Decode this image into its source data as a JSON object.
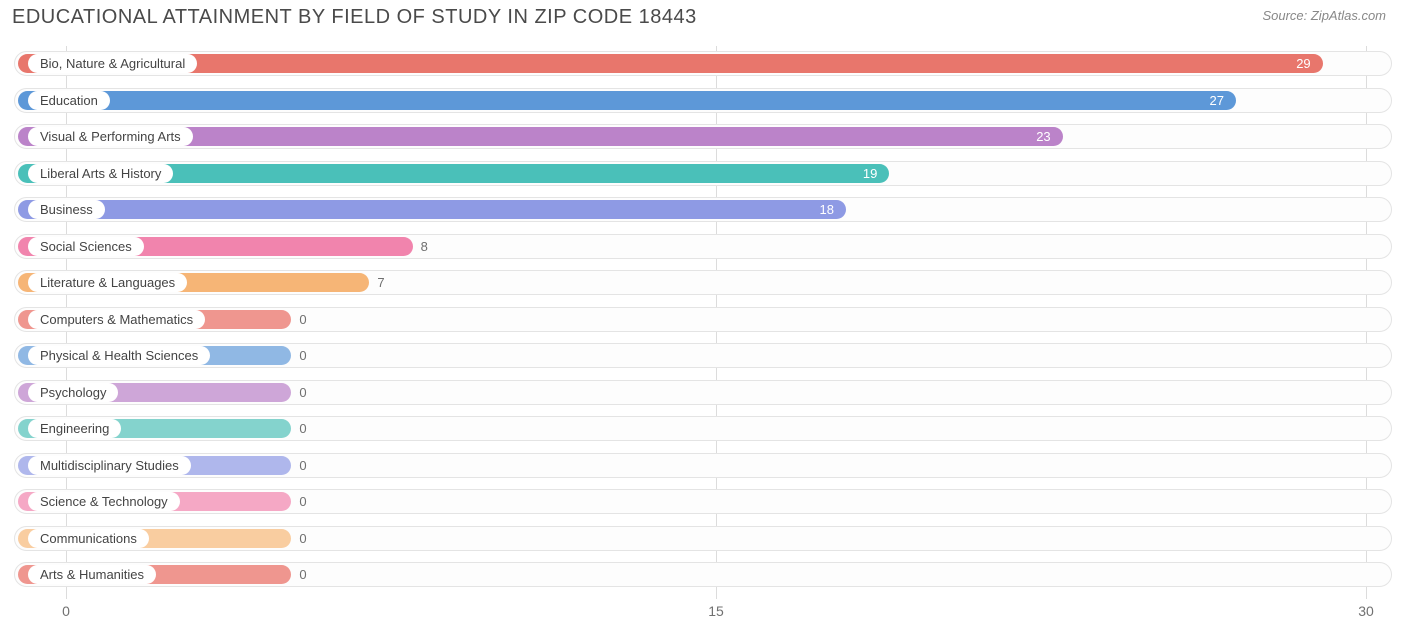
{
  "title": "EDUCATIONAL ATTAINMENT BY FIELD OF STUDY IN ZIP CODE 18443",
  "source": "Source: ZipAtlas.com",
  "chart": {
    "type": "bar-horizontal",
    "xmin": -1.2,
    "xmax": 30.6,
    "ticks": [
      {
        "value": 0,
        "label": "0"
      },
      {
        "value": 15,
        "label": "15"
      },
      {
        "value": 30,
        "label": "30"
      }
    ],
    "min_bar_value": 5.2,
    "track_border": "#e4e4e4",
    "track_bg": "#fdfdfd",
    "grid_color": "#dcdcdc",
    "title_color": "#4a4a4a",
    "tick_color": "#717171",
    "value_inside_color": "#ffffff",
    "value_outside_color": "#6f6f6f",
    "rows": [
      {
        "label": "Bio, Nature & Agricultural",
        "value": 29,
        "color": "#e8766c"
      },
      {
        "label": "Education",
        "value": 27,
        "color": "#5d98d8"
      },
      {
        "label": "Visual & Performing Arts",
        "value": 23,
        "color": "#bb83c9"
      },
      {
        "label": "Liberal Arts & History",
        "value": 19,
        "color": "#4ac0b9"
      },
      {
        "label": "Business",
        "value": 18,
        "color": "#8e9ae4"
      },
      {
        "label": "Social Sciences",
        "value": 8,
        "color": "#f184ad"
      },
      {
        "label": "Literature & Languages",
        "value": 7,
        "color": "#f6b576"
      },
      {
        "label": "Computers & Mathematics",
        "value": 0,
        "color": "#ef968f"
      },
      {
        "label": "Physical & Health Sciences",
        "value": 0,
        "color": "#90b8e4"
      },
      {
        "label": "Psychology",
        "value": 0,
        "color": "#cea6d8"
      },
      {
        "label": "Engineering",
        "value": 0,
        "color": "#84d3cd"
      },
      {
        "label": "Multidisciplinary Studies",
        "value": 0,
        "color": "#afb7ec"
      },
      {
        "label": "Science & Technology",
        "value": 0,
        "color": "#f5a8c5"
      },
      {
        "label": "Communications",
        "value": 0,
        "color": "#f9cda0"
      },
      {
        "label": "Arts & Humanities",
        "value": 0,
        "color": "#ef968f"
      }
    ]
  }
}
